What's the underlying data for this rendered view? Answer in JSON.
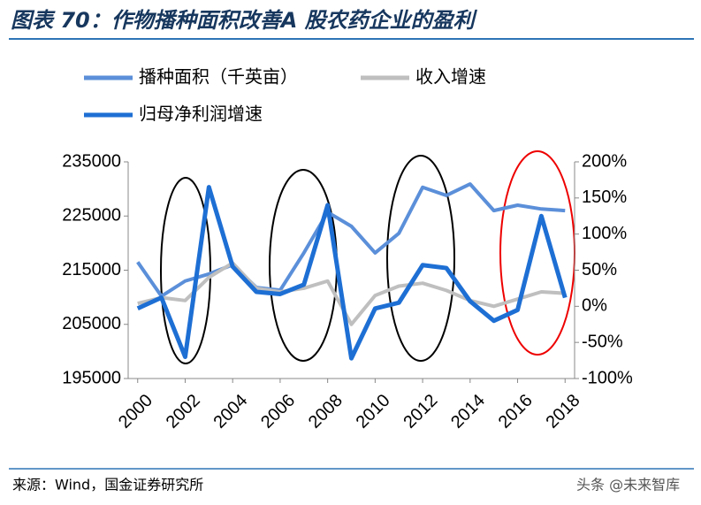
{
  "chart_data": {
    "type": "line",
    "title": "图表 70：作物播种面积改善A 股农药企业的盈利",
    "source": "来源：Wind，国金证券研究所",
    "watermark": "头条 @未来智库",
    "x": [
      2000,
      2001,
      2002,
      2003,
      2004,
      2005,
      2006,
      2007,
      2008,
      2009,
      2010,
      2011,
      2012,
      2013,
      2014,
      2015,
      2016,
      2017,
      2018
    ],
    "xlim": [
      1999.6,
      2018.4
    ],
    "xticks": [
      2000,
      2002,
      2004,
      2006,
      2008,
      2010,
      2012,
      2014,
      2016,
      2018
    ],
    "ylim": [
      195000,
      235000
    ],
    "yticks": [
      195000,
      205000,
      215000,
      225000,
      235000
    ],
    "y2lim": [
      -100,
      200
    ],
    "y2ticks": [
      {
        "value": -100,
        "label": "-100%"
      },
      {
        "value": -50,
        "label": "-50%"
      },
      {
        "value": 0,
        "label": "0%"
      },
      {
        "value": 50,
        "label": "50%"
      },
      {
        "value": 100,
        "label": "100%"
      },
      {
        "value": 150,
        "label": "150%"
      },
      {
        "value": 200,
        "label": "200%"
      }
    ],
    "series": [
      {
        "name": "播种面积（千英亩）",
        "color": "#5b8fd9",
        "values": [
          216500,
          210200,
          213000,
          214300,
          216000,
          211800,
          211300,
          218200,
          225700,
          223100,
          218200,
          221800,
          230300,
          228800,
          230900,
          226000,
          227000,
          226300,
          226000
        ]
      },
      {
        "name": "收入增速",
        "color": "#bfbfbf",
        "axis": "y2",
        "values": [
          4,
          12,
          8,
          40,
          60,
          25,
          20,
          25,
          35,
          -25,
          15,
          28,
          32,
          22,
          8,
          0,
          10,
          20,
          18
        ]
      },
      {
        "name": "归母净利润增速",
        "color": "#1e6fd4",
        "axis": "y2",
        "values": [
          -3,
          12,
          -70,
          165,
          55,
          20,
          17,
          30,
          140,
          -72,
          -3,
          5,
          57,
          53,
          7,
          -20,
          -5,
          125,
          12
        ]
      }
    ]
  }
}
